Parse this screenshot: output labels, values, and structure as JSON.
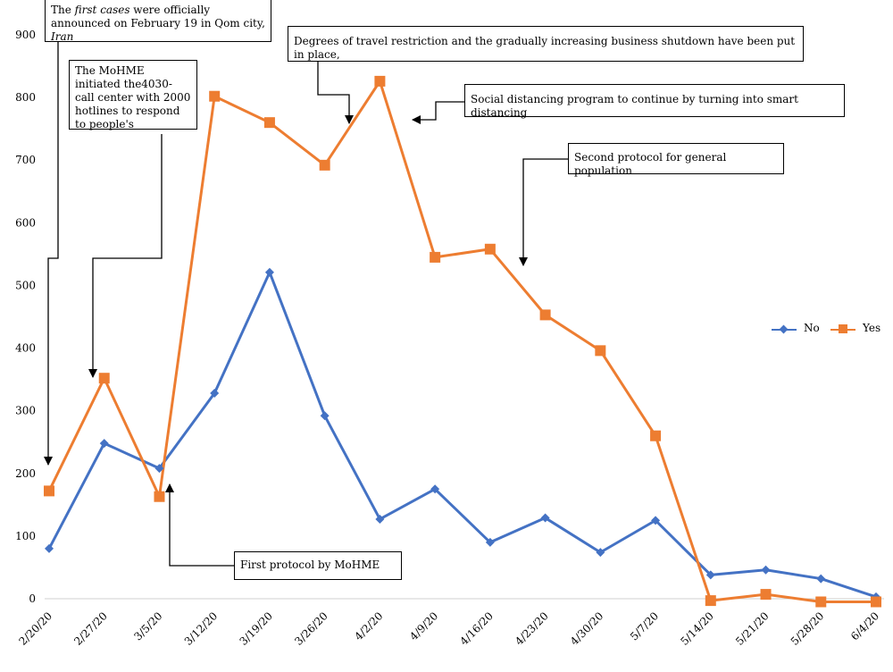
{
  "chart_data": {
    "type": "line",
    "categories": [
      "2/20/20",
      "2/27/20",
      "3/5/20",
      "3/12/20",
      "3/19/20",
      "3/26/20",
      "4/2/20",
      "4/9/20",
      "4/16/20",
      "4/23/20",
      "4/30/20",
      "5/7/20",
      "5/14/20",
      "5/21/20",
      "5/28/20",
      "6/4/20"
    ],
    "series": [
      {
        "name": "No",
        "color": "#4472C4",
        "marker": "diamond",
        "values": [
          80,
          248,
          208,
          328,
          521,
          292,
          127,
          175,
          90,
          129,
          74,
          125,
          38,
          46,
          32,
          3
        ]
      },
      {
        "name": "Yes",
        "color": "#ED7D31",
        "marker": "square",
        "values": [
          172,
          352,
          163,
          802,
          760,
          692,
          826,
          545,
          558,
          453,
          396,
          260,
          -3,
          7,
          -5,
          -5
        ]
      }
    ],
    "ylim": [
      0,
      900
    ],
    "yticks": [
      0,
      100,
      200,
      300,
      400,
      500,
      600,
      700,
      800,
      900
    ],
    "grid": false,
    "legend_position": "right",
    "annotations": {
      "first_cases_pre": "The ",
      "first_cases_em": "first cases",
      "first_cases_mid": " were officially announced on February 19 in Qom city, ",
      "first_cases_place": "Iran",
      "call_center": "The MoHME initiated the4030-call center with 2000 hotlines to respond to people's",
      "travel": "Degrees of travel restriction and the gradually increasing business shutdown have been put in place,",
      "social": "Social distancing program to continue by turning  into smart distancing",
      "second_protocol": "Second protocol for general population",
      "first_protocol": "First protocol by MoHME"
    }
  }
}
